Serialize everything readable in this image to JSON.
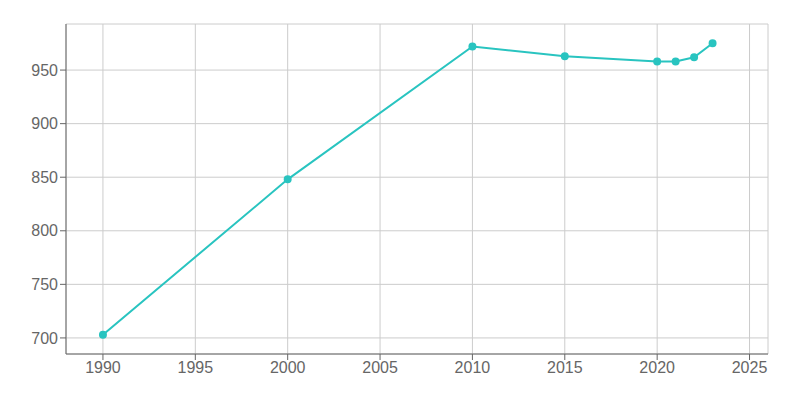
{
  "chart_data": {
    "type": "line",
    "x": [
      1990,
      2000,
      2010,
      2015,
      2020,
      2021,
      2022,
      2023
    ],
    "values": [
      703,
      848,
      972,
      963,
      958,
      958,
      962,
      975
    ],
    "color": "#29C4C0",
    "marker": "circle",
    "xlim": [
      1988,
      2026
    ],
    "ylim": [
      685,
      993
    ],
    "xticks": [
      1990,
      1995,
      2000,
      2005,
      2010,
      2015,
      2020,
      2025
    ],
    "yticks": [
      700,
      750,
      800,
      850,
      900,
      950
    ],
    "grid": true
  }
}
